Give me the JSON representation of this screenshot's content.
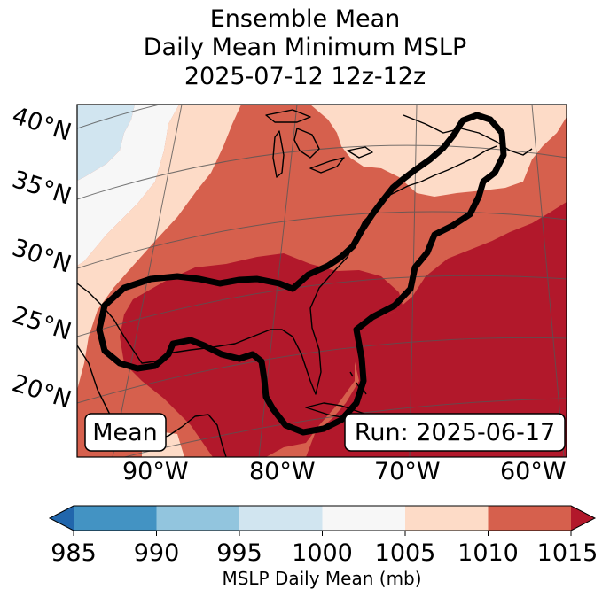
{
  "title": {
    "line1": "Ensemble Mean",
    "line2": "Daily Mean Minimum MSLP",
    "line3": "2025-07-12 12z-12z"
  },
  "map": {
    "lat_labels": [
      "40°N",
      "35°N",
      "30°N",
      "25°N",
      "20°N"
    ],
    "lon_labels": [
      "90°W",
      "80°W",
      "70°W",
      "60°W"
    ],
    "mean_box": "Mean",
    "run_box": "Run: 2025-06-17",
    "colors": {
      "bin_995_1000": "#d1e5f0",
      "bin_1000_1005": "#f7f7f7",
      "bin_1005_1010": "#fddbc7",
      "bin_1010_1015": "#d6604d",
      "bin_over_1015": "#b2182b"
    }
  },
  "colorbar": {
    "title": "MSLP Daily Mean (mb)",
    "ticks": [
      "985",
      "990",
      "995",
      "1000",
      "1005",
      "1010",
      "1015"
    ],
    "colors": {
      "under": "#2166ac",
      "c985_990": "#4393c3",
      "c990_995": "#92c5de",
      "c995_1000": "#d1e5f0",
      "c1000_1005": "#f7f7f7",
      "c1005_1010": "#fddbc7",
      "c1010_1015": "#d6604d",
      "over": "#b2182b"
    }
  }
}
